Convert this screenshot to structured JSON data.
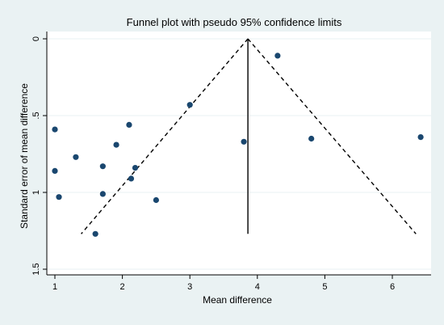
{
  "chart_data": {
    "type": "scatter",
    "title": "Funnel plot with pseudo 95% confidence limits",
    "xlabel": "Mean difference",
    "ylabel": "Standard error of mean difference",
    "xlim": [
      1,
      6.4
    ],
    "ylim": [
      1.5,
      0
    ],
    "y_axis_reversed": true,
    "grid": "horizontal",
    "x_ticks": [
      1,
      2,
      3,
      4,
      5,
      6
    ],
    "x_tick_labels": [
      "1",
      "2",
      "3",
      "4",
      "5",
      "6"
    ],
    "y_ticks": [
      0,
      0.5,
      1,
      1.5
    ],
    "y_tick_labels": [
      "0",
      ".5",
      "1",
      "1.5"
    ],
    "pooled_estimate": 3.86,
    "funnel_se_max": 1.27,
    "funnel_lines": {
      "center": [
        [
          3.86,
          0
        ],
        [
          3.86,
          1.27
        ]
      ],
      "left": [
        [
          3.86,
          0
        ],
        [
          1.39,
          1.27
        ]
      ],
      "right": [
        [
          3.86,
          0
        ],
        [
          6.35,
          1.27
        ]
      ]
    },
    "points": [
      {
        "x": 1.0,
        "y": 0.59
      },
      {
        "x": 1.0,
        "y": 0.86
      },
      {
        "x": 1.06,
        "y": 1.03
      },
      {
        "x": 1.31,
        "y": 0.77
      },
      {
        "x": 1.6,
        "y": 1.27
      },
      {
        "x": 1.71,
        "y": 0.83
      },
      {
        "x": 1.71,
        "y": 1.01
      },
      {
        "x": 1.91,
        "y": 0.69
      },
      {
        "x": 2.1,
        "y": 0.56
      },
      {
        "x": 2.13,
        "y": 0.91
      },
      {
        "x": 2.19,
        "y": 0.84
      },
      {
        "x": 2.5,
        "y": 1.05
      },
      {
        "x": 3.0,
        "y": 0.43
      },
      {
        "x": 3.8,
        "y": 0.67
      },
      {
        "x": 4.3,
        "y": 0.11
      },
      {
        "x": 4.8,
        "y": 0.65
      },
      {
        "x": 6.42,
        "y": 0.64
      }
    ],
    "colors": {
      "panel_background": "#eaf2f3",
      "plot_background": "#ffffff",
      "grid": "#eaf2f3",
      "point": "#1a476f",
      "line": "#000000"
    }
  }
}
